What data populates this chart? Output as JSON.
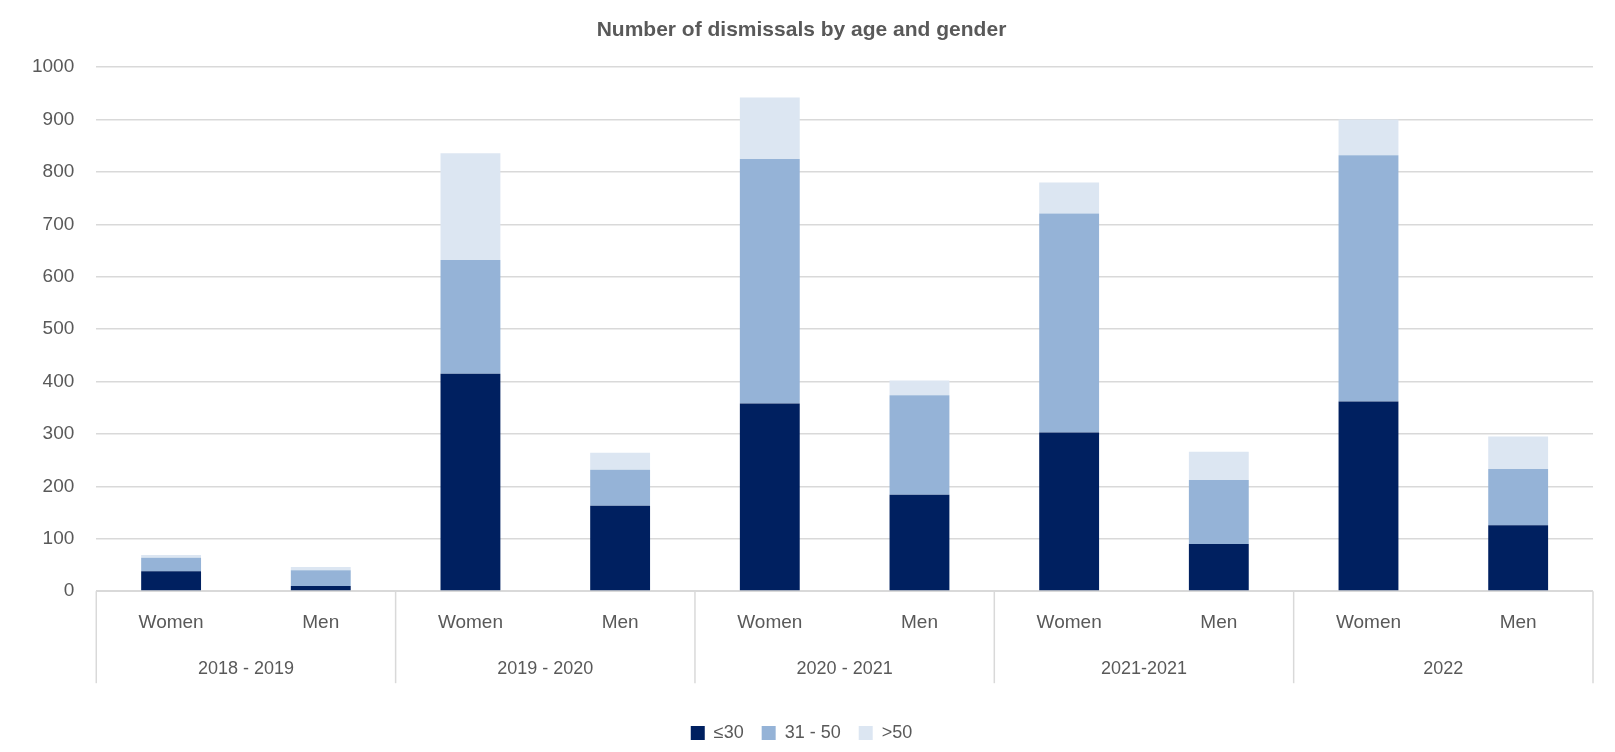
{
  "chart_data": {
    "type": "bar",
    "title": "Number of dismissals by age and gender",
    "categories": [
      "Women",
      "Men",
      "Women",
      "Men",
      "Women",
      "Men",
      "Women",
      "Men",
      "Women",
      "Men"
    ],
    "annotations": [
      "2018 - 2019",
      "2019 - 2020",
      "2020 - 2021",
      "2021-2021",
      "2022"
    ],
    "series": [
      {
        "name": "≤30",
        "color": "#002060",
        "values": [
          38,
          10,
          415,
          163,
          358,
          184,
          303,
          90,
          362,
          126
        ]
      },
      {
        "name": "31 - 50",
        "color": "#95b3d7",
        "values": [
          26,
          30,
          217,
          69,
          467,
          190,
          418,
          122,
          470,
          107
        ]
      },
      {
        "name": ">50",
        "color": "#dce6f2",
        "values": [
          5,
          6,
          204,
          32,
          117,
          28,
          59,
          54,
          68,
          62
        ]
      }
    ],
    "stacked": true,
    "ylim": [
      0,
      1000
    ],
    "yticks": [
      0,
      100,
      200,
      300,
      400,
      500,
      600,
      700,
      800,
      900,
      1000
    ],
    "grid": "y",
    "legend": "bottom"
  }
}
